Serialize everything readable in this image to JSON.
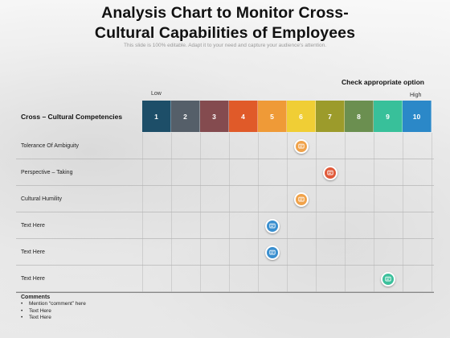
{
  "slide": {
    "title_line1": "Analysis Chart to Monitor Cross-",
    "title_line2": "Cultural Capabilities of Employees",
    "subtitle": "This slide is 100% editable. Adapt it to your need and capture your audience's attention."
  },
  "scale": {
    "check_label": "Check appropriate option",
    "low_label": "Low",
    "high_label": "High",
    "header_label": "Cross – Cultural Competencies",
    "cells": [
      {
        "label": "1",
        "color": "#1d4e68"
      },
      {
        "label": "2",
        "color": "#555f69"
      },
      {
        "label": "3",
        "color": "#844b4f"
      },
      {
        "label": "4",
        "color": "#e05a29"
      },
      {
        "label": "5",
        "color": "#ef9a37"
      },
      {
        "label": "6",
        "color": "#f0ce35"
      },
      {
        "label": "7",
        "color": "#9c9b2b"
      },
      {
        "label": "8",
        "color": "#6b8f50"
      },
      {
        "label": "9",
        "color": "#38c09a"
      },
      {
        "label": "10",
        "color": "#2b88c8"
      }
    ]
  },
  "rows": [
    {
      "label": "Tolerance Of Ambiguity",
      "selected": 6,
      "marker_color": "#f0a24a",
      "icon": "comment-icon"
    },
    {
      "label": "Perspective – Taking",
      "selected": 7,
      "marker_color": "#e05a3a",
      "icon": "comment-icon"
    },
    {
      "label": "Cultural Humility",
      "selected": 6,
      "marker_color": "#f0a24a",
      "icon": "comment-icon"
    },
    {
      "label": "Text Here",
      "selected": 5,
      "marker_color": "#3a8fcf",
      "icon": "comment-icon"
    },
    {
      "label": "Text Here",
      "selected": 5,
      "marker_color": "#3a8fcf",
      "icon": "comment-icon"
    },
    {
      "label": "Text Here",
      "selected": 9,
      "marker_color": "#3cc09c",
      "icon": "comment-icon"
    }
  ],
  "comments": {
    "heading": "Comments",
    "items": [
      "Mention “comment” here",
      "Text Here",
      "Text Here"
    ]
  }
}
